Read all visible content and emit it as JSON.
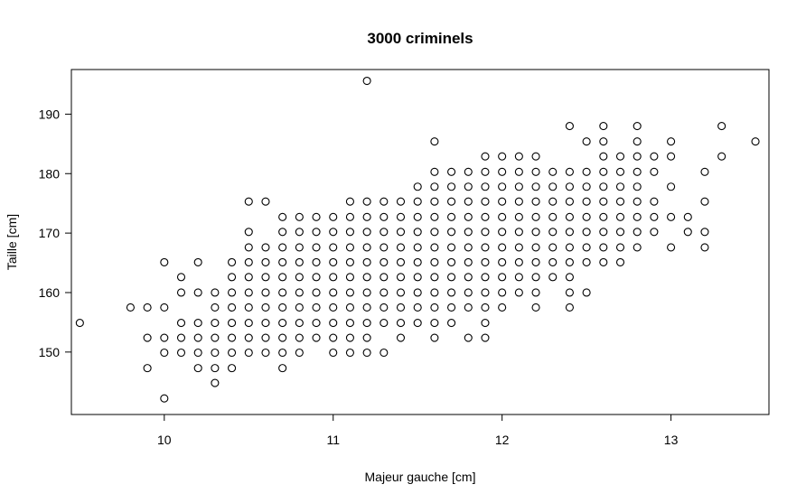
{
  "chart_data": {
    "type": "scatter",
    "title": "3000 criminels",
    "xlabel": "Majeur gauche [cm]",
    "ylabel": "Taille [cm]",
    "xlim": [
      9.45,
      13.58
    ],
    "ylim": [
      139.5,
      197.5
    ],
    "xticks": [
      10,
      11,
      12,
      13
    ],
    "yticks": [
      150,
      160,
      170,
      180,
      190
    ],
    "grid": false,
    "legend": "none",
    "marker": "open-circle",
    "points": [
      [
        9.5,
        154.9
      ],
      [
        11.2,
        195.6
      ],
      [
        13.5,
        185.4
      ],
      [
        9.8,
        157.5
      ],
      [
        9.9,
        157.5
      ],
      [
        9.9,
        152.4
      ],
      [
        9.9,
        147.3
      ],
      [
        10.0,
        165.1
      ],
      [
        10.0,
        157.5
      ],
      [
        10.0,
        152.4
      ],
      [
        10.0,
        149.9
      ],
      [
        10.0,
        142.2
      ],
      [
        10.1,
        162.6
      ],
      [
        10.1,
        160.0
      ],
      [
        10.1,
        154.9
      ],
      [
        10.1,
        152.4
      ],
      [
        10.1,
        149.9
      ],
      [
        10.2,
        165.1
      ],
      [
        10.2,
        160.0
      ],
      [
        10.2,
        154.9
      ],
      [
        10.2,
        152.4
      ],
      [
        10.2,
        149.9
      ],
      [
        10.2,
        147.3
      ],
      [
        10.3,
        160.0
      ],
      [
        10.3,
        157.5
      ],
      [
        10.3,
        154.9
      ],
      [
        10.3,
        152.4
      ],
      [
        10.3,
        149.9
      ],
      [
        10.3,
        147.3
      ],
      [
        10.3,
        144.8
      ],
      [
        10.4,
        165.1
      ],
      [
        10.4,
        162.6
      ],
      [
        10.4,
        160.0
      ],
      [
        10.4,
        157.5
      ],
      [
        10.4,
        154.9
      ],
      [
        10.4,
        152.4
      ],
      [
        10.4,
        149.9
      ],
      [
        10.4,
        147.3
      ],
      [
        10.5,
        175.3
      ],
      [
        10.5,
        170.2
      ],
      [
        10.5,
        167.6
      ],
      [
        10.5,
        165.1
      ],
      [
        10.5,
        162.6
      ],
      [
        10.5,
        160.0
      ],
      [
        10.5,
        157.5
      ],
      [
        10.5,
        154.9
      ],
      [
        10.5,
        152.4
      ],
      [
        10.5,
        149.9
      ],
      [
        10.6,
        175.3
      ],
      [
        10.6,
        167.6
      ],
      [
        10.6,
        165.1
      ],
      [
        10.6,
        162.6
      ],
      [
        10.6,
        160.0
      ],
      [
        10.6,
        157.5
      ],
      [
        10.6,
        154.9
      ],
      [
        10.6,
        152.4
      ],
      [
        10.6,
        149.9
      ],
      [
        10.7,
        172.7
      ],
      [
        10.7,
        170.2
      ],
      [
        10.7,
        167.6
      ],
      [
        10.7,
        165.1
      ],
      [
        10.7,
        162.6
      ],
      [
        10.7,
        160.0
      ],
      [
        10.7,
        157.5
      ],
      [
        10.7,
        154.9
      ],
      [
        10.7,
        152.4
      ],
      [
        10.7,
        149.9
      ],
      [
        10.7,
        147.3
      ],
      [
        10.8,
        172.7
      ],
      [
        10.8,
        170.2
      ],
      [
        10.8,
        167.6
      ],
      [
        10.8,
        165.1
      ],
      [
        10.8,
        162.6
      ],
      [
        10.8,
        160.0
      ],
      [
        10.8,
        157.5
      ],
      [
        10.8,
        154.9
      ],
      [
        10.8,
        152.4
      ],
      [
        10.8,
        149.9
      ],
      [
        10.9,
        172.7
      ],
      [
        10.9,
        170.2
      ],
      [
        10.9,
        167.6
      ],
      [
        10.9,
        165.1
      ],
      [
        10.9,
        162.6
      ],
      [
        10.9,
        160.0
      ],
      [
        10.9,
        157.5
      ],
      [
        10.9,
        154.9
      ],
      [
        10.9,
        152.4
      ],
      [
        11.0,
        172.7
      ],
      [
        11.0,
        170.2
      ],
      [
        11.0,
        167.6
      ],
      [
        11.0,
        165.1
      ],
      [
        11.0,
        162.6
      ],
      [
        11.0,
        160.0
      ],
      [
        11.0,
        157.5
      ],
      [
        11.0,
        154.9
      ],
      [
        11.0,
        152.4
      ],
      [
        11.0,
        149.9
      ],
      [
        11.1,
        175.3
      ],
      [
        11.1,
        172.7
      ],
      [
        11.1,
        170.2
      ],
      [
        11.1,
        167.6
      ],
      [
        11.1,
        165.1
      ],
      [
        11.1,
        162.6
      ],
      [
        11.1,
        160.0
      ],
      [
        11.1,
        157.5
      ],
      [
        11.1,
        154.9
      ],
      [
        11.1,
        152.4
      ],
      [
        11.1,
        149.9
      ],
      [
        11.2,
        175.3
      ],
      [
        11.2,
        172.7
      ],
      [
        11.2,
        170.2
      ],
      [
        11.2,
        167.6
      ],
      [
        11.2,
        165.1
      ],
      [
        11.2,
        162.6
      ],
      [
        11.2,
        160.0
      ],
      [
        11.2,
        157.5
      ],
      [
        11.2,
        154.9
      ],
      [
        11.2,
        152.4
      ],
      [
        11.2,
        149.9
      ],
      [
        11.3,
        175.3
      ],
      [
        11.3,
        172.7
      ],
      [
        11.3,
        170.2
      ],
      [
        11.3,
        167.6
      ],
      [
        11.3,
        165.1
      ],
      [
        11.3,
        162.6
      ],
      [
        11.3,
        160.0
      ],
      [
        11.3,
        157.5
      ],
      [
        11.3,
        154.9
      ],
      [
        11.3,
        149.9
      ],
      [
        11.4,
        175.3
      ],
      [
        11.4,
        172.7
      ],
      [
        11.4,
        170.2
      ],
      [
        11.4,
        167.6
      ],
      [
        11.4,
        165.1
      ],
      [
        11.4,
        162.6
      ],
      [
        11.4,
        160.0
      ],
      [
        11.4,
        157.5
      ],
      [
        11.4,
        154.9
      ],
      [
        11.4,
        152.4
      ],
      [
        11.5,
        177.8
      ],
      [
        11.5,
        175.3
      ],
      [
        11.5,
        172.7
      ],
      [
        11.5,
        170.2
      ],
      [
        11.5,
        167.6
      ],
      [
        11.5,
        165.1
      ],
      [
        11.5,
        162.6
      ],
      [
        11.5,
        160.0
      ],
      [
        11.5,
        157.5
      ],
      [
        11.5,
        154.9
      ],
      [
        11.6,
        185.4
      ],
      [
        11.6,
        180.3
      ],
      [
        11.6,
        177.8
      ],
      [
        11.6,
        175.3
      ],
      [
        11.6,
        172.7
      ],
      [
        11.6,
        170.2
      ],
      [
        11.6,
        167.6
      ],
      [
        11.6,
        165.1
      ],
      [
        11.6,
        162.6
      ],
      [
        11.6,
        160.0
      ],
      [
        11.6,
        157.5
      ],
      [
        11.6,
        154.9
      ],
      [
        11.6,
        152.4
      ],
      [
        11.7,
        180.3
      ],
      [
        11.7,
        177.8
      ],
      [
        11.7,
        175.3
      ],
      [
        11.7,
        172.7
      ],
      [
        11.7,
        170.2
      ],
      [
        11.7,
        167.6
      ],
      [
        11.7,
        165.1
      ],
      [
        11.7,
        162.6
      ],
      [
        11.7,
        160.0
      ],
      [
        11.7,
        157.5
      ],
      [
        11.7,
        154.9
      ],
      [
        11.8,
        180.3
      ],
      [
        11.8,
        177.8
      ],
      [
        11.8,
        175.3
      ],
      [
        11.8,
        172.7
      ],
      [
        11.8,
        170.2
      ],
      [
        11.8,
        167.6
      ],
      [
        11.8,
        165.1
      ],
      [
        11.8,
        162.6
      ],
      [
        11.8,
        160.0
      ],
      [
        11.8,
        157.5
      ],
      [
        11.8,
        152.4
      ],
      [
        11.9,
        182.9
      ],
      [
        11.9,
        180.3
      ],
      [
        11.9,
        177.8
      ],
      [
        11.9,
        175.3
      ],
      [
        11.9,
        172.7
      ],
      [
        11.9,
        170.2
      ],
      [
        11.9,
        167.6
      ],
      [
        11.9,
        165.1
      ],
      [
        11.9,
        162.6
      ],
      [
        11.9,
        160.0
      ],
      [
        11.9,
        157.5
      ],
      [
        11.9,
        154.9
      ],
      [
        11.9,
        152.4
      ],
      [
        12.0,
        182.9
      ],
      [
        12.0,
        180.3
      ],
      [
        12.0,
        177.8
      ],
      [
        12.0,
        175.3
      ],
      [
        12.0,
        172.7
      ],
      [
        12.0,
        170.2
      ],
      [
        12.0,
        167.6
      ],
      [
        12.0,
        165.1
      ],
      [
        12.0,
        162.6
      ],
      [
        12.0,
        160.0
      ],
      [
        12.0,
        157.5
      ],
      [
        12.1,
        182.9
      ],
      [
        12.1,
        180.3
      ],
      [
        12.1,
        177.8
      ],
      [
        12.1,
        175.3
      ],
      [
        12.1,
        172.7
      ],
      [
        12.1,
        170.2
      ],
      [
        12.1,
        167.6
      ],
      [
        12.1,
        165.1
      ],
      [
        12.1,
        162.6
      ],
      [
        12.1,
        160.0
      ],
      [
        12.2,
        182.9
      ],
      [
        12.2,
        180.3
      ],
      [
        12.2,
        177.8
      ],
      [
        12.2,
        175.3
      ],
      [
        12.2,
        172.7
      ],
      [
        12.2,
        170.2
      ],
      [
        12.2,
        167.6
      ],
      [
        12.2,
        165.1
      ],
      [
        12.2,
        162.6
      ],
      [
        12.2,
        160.0
      ],
      [
        12.2,
        157.5
      ],
      [
        12.3,
        180.3
      ],
      [
        12.3,
        177.8
      ],
      [
        12.3,
        175.3
      ],
      [
        12.3,
        172.7
      ],
      [
        12.3,
        170.2
      ],
      [
        12.3,
        167.6
      ],
      [
        12.3,
        165.1
      ],
      [
        12.3,
        162.6
      ],
      [
        12.4,
        188.0
      ],
      [
        12.4,
        180.3
      ],
      [
        12.4,
        177.8
      ],
      [
        12.4,
        175.3
      ],
      [
        12.4,
        172.7
      ],
      [
        12.4,
        170.2
      ],
      [
        12.4,
        167.6
      ],
      [
        12.4,
        165.1
      ],
      [
        12.4,
        162.6
      ],
      [
        12.4,
        160.0
      ],
      [
        12.4,
        157.5
      ],
      [
        12.5,
        185.4
      ],
      [
        12.5,
        180.3
      ],
      [
        12.5,
        177.8
      ],
      [
        12.5,
        175.3
      ],
      [
        12.5,
        172.7
      ],
      [
        12.5,
        170.2
      ],
      [
        12.5,
        167.6
      ],
      [
        12.5,
        165.1
      ],
      [
        12.5,
        160.0
      ],
      [
        12.6,
        188.0
      ],
      [
        12.6,
        185.4
      ],
      [
        12.6,
        182.9
      ],
      [
        12.6,
        180.3
      ],
      [
        12.6,
        177.8
      ],
      [
        12.6,
        175.3
      ],
      [
        12.6,
        172.7
      ],
      [
        12.6,
        170.2
      ],
      [
        12.6,
        167.6
      ],
      [
        12.6,
        165.1
      ],
      [
        12.7,
        182.9
      ],
      [
        12.7,
        180.3
      ],
      [
        12.7,
        177.8
      ],
      [
        12.7,
        175.3
      ],
      [
        12.7,
        172.7
      ],
      [
        12.7,
        170.2
      ],
      [
        12.7,
        167.6
      ],
      [
        12.7,
        165.1
      ],
      [
        12.8,
        188.0
      ],
      [
        12.8,
        185.4
      ],
      [
        12.8,
        182.9
      ],
      [
        12.8,
        180.3
      ],
      [
        12.8,
        177.8
      ],
      [
        12.8,
        175.3
      ],
      [
        12.8,
        172.7
      ],
      [
        12.8,
        170.2
      ],
      [
        12.8,
        167.6
      ],
      [
        12.9,
        182.9
      ],
      [
        12.9,
        180.3
      ],
      [
        12.9,
        175.3
      ],
      [
        12.9,
        172.7
      ],
      [
        12.9,
        170.2
      ],
      [
        13.0,
        185.4
      ],
      [
        13.0,
        182.9
      ],
      [
        13.0,
        177.8
      ],
      [
        13.0,
        172.7
      ],
      [
        13.0,
        167.6
      ],
      [
        13.1,
        172.7
      ],
      [
        13.1,
        170.2
      ],
      [
        13.2,
        180.3
      ],
      [
        13.2,
        175.3
      ],
      [
        13.2,
        170.2
      ],
      [
        13.2,
        167.6
      ],
      [
        13.3,
        188.0
      ],
      [
        13.3,
        182.9
      ]
    ]
  }
}
